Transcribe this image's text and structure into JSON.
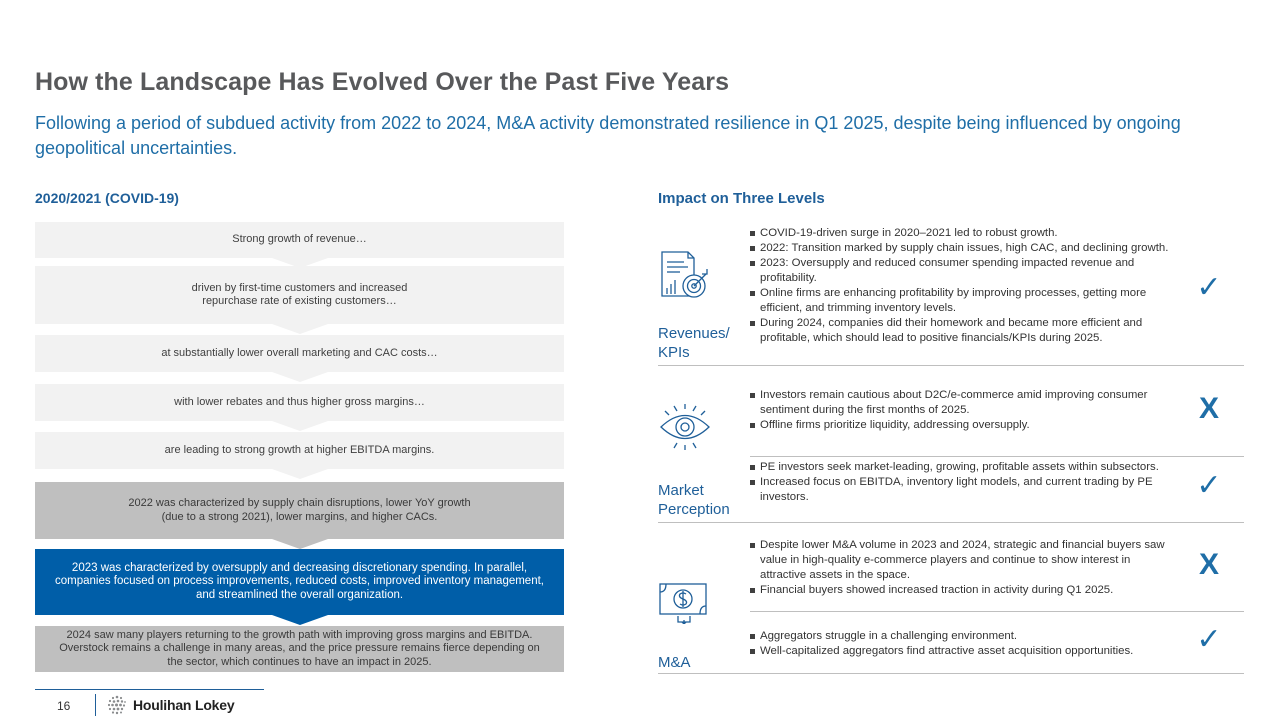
{
  "title": "How the Landscape Has Evolved Over the Past Five Years",
  "subtitle": "Following a period of subdued activity from 2022 to 2024, M&A activity demonstrated resilience in Q1 2025, despite being influenced by ongoing geopolitical uncertainties.",
  "left": {
    "header": "2020/2021 (COVID-19)",
    "boxes": [
      "Strong growth of revenue…",
      "driven by first-time customers and increased\nrepurchase rate of existing customers…",
      "at substantially lower overall marketing and CAC costs…",
      "with lower rebates and thus higher gross margins…",
      "are leading to strong growth at higher EBITDA margins.",
      "2022 was characterized by supply chain disruptions, lower YoY growth\n(due to a strong 2021), lower margins, and higher CACs.",
      "2023 was characterized by oversupply and decreasing discretionary spending. In parallel, companies focused on process improvements, reduced costs, improved inventory management, and streamlined the overall organization.",
      "2024 saw many players returning to the growth path with improving gross margins and EBITDA. Overstock remains a challenge in many areas, and the price pressure remains fierce depending on the sector, which continues to have an impact in 2025."
    ]
  },
  "right": {
    "header": "Impact on Three Levels",
    "levels": [
      {
        "label": "Revenues/\nKPIs",
        "icon": "report-target-icon",
        "groups": [
          {
            "mark": "✓",
            "bullets": [
              "COVID-19-driven surge in 2020–2021 led to robust growth.",
              "2022: Transition marked by supply chain issues, high CAC, and declining growth.",
              "2023: Oversupply and reduced consumer spending impacted revenue and profitability.",
              "Online firms are enhancing profitability by improving processes, getting more efficient, and trimming inventory levels.",
              "During 2024, companies did their homework and became more efficient and profitable, which should lead to positive financials/KPIs during 2025."
            ]
          }
        ]
      },
      {
        "label": "Market\nPerception",
        "icon": "eye-icon",
        "groups": [
          {
            "mark": "X",
            "bullets": [
              "Investors remain cautious about D2C/e-commerce amid improving consumer sentiment during the first months of 2025.",
              "Offline firms prioritize liquidity, addressing oversupply."
            ]
          },
          {
            "mark": "✓",
            "bullets": [
              "PE investors seek market-leading, growing, profitable assets within subsectors.",
              "Increased focus on EBITDA, inventory light models, and current trading by PE investors."
            ]
          }
        ]
      },
      {
        "label": "M&A",
        "icon": "money-exchange-icon",
        "groups": [
          {
            "mark": "X",
            "bullets": [
              "Despite lower M&A volume in 2023 and 2024, strategic and financial buyers saw value in high-quality e-commerce players and continue to show interest in attractive assets in the space.",
              "Financial buyers showed increased traction in activity during Q1 2025."
            ]
          },
          {
            "mark": "✓",
            "bullets": [
              "Aggregators struggle in a challenging environment.",
              "Well-capitalized aggregators find attractive asset acquisition opportunities."
            ]
          }
        ]
      }
    ]
  },
  "footer": {
    "page": "16",
    "brand": "Houlihan Lokey"
  }
}
